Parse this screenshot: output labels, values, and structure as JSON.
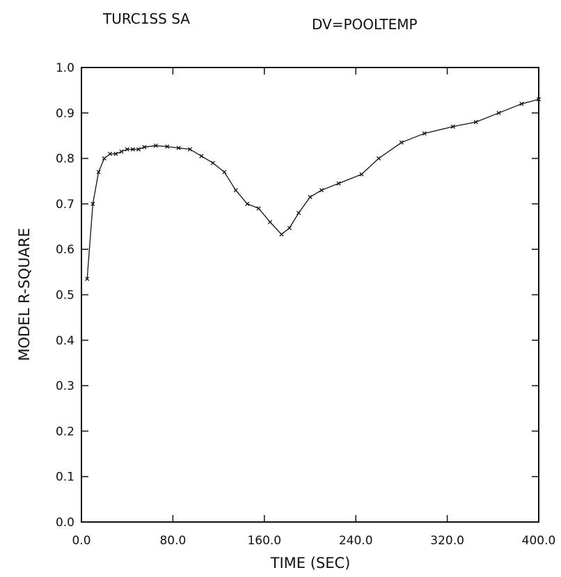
{
  "header": {
    "left_title": "TURC1SS SA",
    "right_title": "DV=POOLTEMP"
  },
  "chart_data": {
    "type": "line",
    "xlabel": "TIME (SEC)",
    "ylabel": "MODEL R-SQUARE",
    "xlim": [
      0,
      400
    ],
    "ylim": [
      0.0,
      1.0
    ],
    "x_ticks": [
      0,
      80,
      160,
      240,
      320,
      400
    ],
    "x_tick_labels": [
      "0.0",
      "80.0",
      "160.0",
      "240.0",
      "320.0",
      "400.0"
    ],
    "y_ticks": [
      0.0,
      0.1,
      0.2,
      0.3,
      0.4,
      0.5,
      0.6,
      0.7,
      0.8,
      0.9,
      1.0
    ],
    "y_tick_labels": [
      "0.0",
      "0.1",
      "0.2",
      "0.3",
      "0.4",
      "0.5",
      "0.6",
      "0.7",
      "0.8",
      "0.9",
      "1.0"
    ],
    "grid": false,
    "series": [
      {
        "marker": "x",
        "color": "#111111",
        "x": [
          5,
          10,
          15,
          20,
          25,
          30,
          35,
          40,
          45,
          50,
          55,
          65,
          75,
          85,
          95,
          105,
          115,
          125,
          135,
          145,
          155,
          165,
          175,
          182,
          190,
          200,
          210,
          225,
          245,
          260,
          280,
          300,
          325,
          345,
          365,
          385,
          400
        ],
        "y": [
          0.535,
          0.7,
          0.77,
          0.8,
          0.81,
          0.81,
          0.815,
          0.82,
          0.82,
          0.82,
          0.825,
          0.828,
          0.826,
          0.823,
          0.82,
          0.805,
          0.79,
          0.77,
          0.73,
          0.7,
          0.69,
          0.66,
          0.633,
          0.647,
          0.68,
          0.715,
          0.73,
          0.745,
          0.765,
          0.8,
          0.835,
          0.855,
          0.87,
          0.88,
          0.9,
          0.92,
          0.93
        ]
      }
    ]
  }
}
